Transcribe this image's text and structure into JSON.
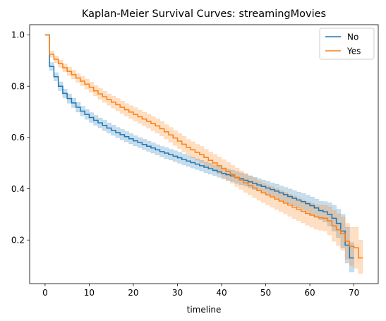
{
  "chart_data": {
    "type": "line",
    "subtype": "step-survival-with-confidence-band",
    "title": "Kaplan-Meier Survival Curves: streamingMovies",
    "xlabel": "timeline",
    "ylabel": "",
    "xlim": [
      -3.5,
      75.5
    ],
    "ylim": [
      0.03,
      1.04
    ],
    "xticks": [
      0,
      10,
      20,
      30,
      40,
      50,
      60,
      70
    ],
    "yticks": [
      0.2,
      0.4,
      0.6,
      0.8,
      1.0
    ],
    "xtick_labels": [
      "0",
      "10",
      "20",
      "30",
      "40",
      "50",
      "60",
      "70"
    ],
    "ytick_labels": [
      "0.2",
      "0.4",
      "0.6",
      "0.8",
      "1.0"
    ],
    "legend_position": "top-right",
    "series": [
      {
        "name": "No",
        "color": "#1f77b4",
        "band_color": "#1f77b4",
        "x": [
          0,
          1,
          2,
          3,
          4,
          5,
          6,
          7,
          8,
          9,
          10,
          11,
          12,
          13,
          14,
          15,
          16,
          17,
          18,
          19,
          20,
          21,
          22,
          23,
          24,
          25,
          26,
          27,
          28,
          29,
          30,
          31,
          32,
          33,
          34,
          35,
          36,
          37,
          38,
          39,
          40,
          41,
          42,
          43,
          44,
          45,
          46,
          47,
          48,
          49,
          50,
          51,
          52,
          53,
          54,
          55,
          56,
          57,
          58,
          59,
          60,
          61,
          62,
          63,
          64,
          65,
          66,
          67,
          68,
          69,
          70
        ],
        "y": [
          1.0,
          0.877,
          0.837,
          0.8,
          0.772,
          0.752,
          0.735,
          0.718,
          0.703,
          0.69,
          0.678,
          0.667,
          0.657,
          0.647,
          0.637,
          0.628,
          0.619,
          0.611,
          0.603,
          0.595,
          0.587,
          0.58,
          0.573,
          0.566,
          0.559,
          0.552,
          0.545,
          0.539,
          0.533,
          0.527,
          0.521,
          0.514,
          0.508,
          0.502,
          0.496,
          0.49,
          0.484,
          0.478,
          0.472,
          0.466,
          0.46,
          0.455,
          0.45,
          0.444,
          0.439,
          0.433,
          0.427,
          0.421,
          0.415,
          0.409,
          0.403,
          0.397,
          0.391,
          0.384,
          0.377,
          0.37,
          0.363,
          0.356,
          0.35,
          0.342,
          0.334,
          0.325,
          0.315,
          0.31,
          0.3,
          0.285,
          0.265,
          0.235,
          0.18,
          0.13,
          0.13
        ],
        "ci_lower": [
          1.0,
          0.862,
          0.821,
          0.783,
          0.755,
          0.734,
          0.717,
          0.699,
          0.684,
          0.671,
          0.659,
          0.648,
          0.638,
          0.627,
          0.617,
          0.608,
          0.599,
          0.591,
          0.583,
          0.575,
          0.567,
          0.56,
          0.553,
          0.546,
          0.539,
          0.532,
          0.525,
          0.518,
          0.512,
          0.506,
          0.5,
          0.493,
          0.487,
          0.481,
          0.475,
          0.469,
          0.463,
          0.457,
          0.451,
          0.445,
          0.438,
          0.433,
          0.428,
          0.421,
          0.416,
          0.41,
          0.403,
          0.397,
          0.391,
          0.384,
          0.377,
          0.371,
          0.364,
          0.357,
          0.349,
          0.341,
          0.333,
          0.325,
          0.318,
          0.309,
          0.3,
          0.29,
          0.279,
          0.27,
          0.255,
          0.235,
          0.21,
          0.17,
          0.11,
          0.075,
          0.075
        ],
        "ci_upper": [
          1.0,
          0.892,
          0.853,
          0.817,
          0.789,
          0.77,
          0.753,
          0.737,
          0.722,
          0.709,
          0.697,
          0.686,
          0.676,
          0.667,
          0.657,
          0.648,
          0.639,
          0.631,
          0.623,
          0.615,
          0.607,
          0.6,
          0.593,
          0.586,
          0.579,
          0.572,
          0.565,
          0.56,
          0.554,
          0.548,
          0.542,
          0.535,
          0.529,
          0.523,
          0.517,
          0.511,
          0.505,
          0.499,
          0.493,
          0.487,
          0.482,
          0.477,
          0.472,
          0.467,
          0.462,
          0.456,
          0.451,
          0.445,
          0.439,
          0.434,
          0.429,
          0.423,
          0.418,
          0.411,
          0.405,
          0.399,
          0.393,
          0.387,
          0.382,
          0.375,
          0.368,
          0.36,
          0.351,
          0.35,
          0.345,
          0.335,
          0.32,
          0.3,
          0.25,
          0.19,
          0.19
        ]
      },
      {
        "name": "Yes",
        "color": "#ff7f0e",
        "band_color": "#ff7f0e",
        "x": [
          0,
          1,
          2,
          3,
          4,
          5,
          6,
          7,
          8,
          9,
          10,
          11,
          12,
          13,
          14,
          15,
          16,
          17,
          18,
          19,
          20,
          21,
          22,
          23,
          24,
          25,
          26,
          27,
          28,
          29,
          30,
          31,
          32,
          33,
          34,
          35,
          36,
          37,
          38,
          39,
          40,
          41,
          42,
          43,
          44,
          45,
          46,
          47,
          48,
          49,
          50,
          51,
          52,
          53,
          54,
          55,
          56,
          57,
          58,
          59,
          60,
          61,
          62,
          63,
          64,
          65,
          66,
          67,
          68,
          69,
          70,
          71,
          72
        ],
        "y": [
          1.0,
          0.925,
          0.905,
          0.888,
          0.872,
          0.858,
          0.845,
          0.832,
          0.82,
          0.808,
          0.796,
          0.782,
          0.77,
          0.759,
          0.748,
          0.738,
          0.728,
          0.718,
          0.708,
          0.699,
          0.69,
          0.681,
          0.672,
          0.663,
          0.654,
          0.645,
          0.634,
          0.622,
          0.61,
          0.598,
          0.586,
          0.574,
          0.562,
          0.552,
          0.542,
          0.533,
          0.522,
          0.511,
          0.501,
          0.49,
          0.479,
          0.467,
          0.456,
          0.445,
          0.434,
          0.423,
          0.413,
          0.403,
          0.393,
          0.384,
          0.376,
          0.368,
          0.36,
          0.352,
          0.344,
          0.336,
          0.328,
          0.32,
          0.312,
          0.304,
          0.297,
          0.29,
          0.287,
          0.285,
          0.275,
          0.255,
          0.24,
          0.225,
          0.195,
          0.175,
          0.17,
          0.13,
          0.13
        ],
        "ci_lower": [
          1.0,
          0.913,
          0.892,
          0.874,
          0.857,
          0.842,
          0.828,
          0.815,
          0.802,
          0.789,
          0.776,
          0.762,
          0.749,
          0.737,
          0.726,
          0.715,
          0.704,
          0.694,
          0.684,
          0.674,
          0.664,
          0.655,
          0.646,
          0.636,
          0.627,
          0.617,
          0.606,
          0.594,
          0.581,
          0.569,
          0.557,
          0.544,
          0.532,
          0.521,
          0.511,
          0.501,
          0.49,
          0.479,
          0.468,
          0.457,
          0.445,
          0.432,
          0.421,
          0.409,
          0.398,
          0.386,
          0.376,
          0.365,
          0.355,
          0.346,
          0.337,
          0.328,
          0.319,
          0.311,
          0.302,
          0.293,
          0.284,
          0.276,
          0.267,
          0.258,
          0.25,
          0.242,
          0.238,
          0.235,
          0.22,
          0.195,
          0.178,
          0.16,
          0.125,
          0.1,
          0.09,
          0.07,
          0.07
        ],
        "ci_upper": [
          1.0,
          0.937,
          0.918,
          0.902,
          0.887,
          0.874,
          0.862,
          0.849,
          0.838,
          0.827,
          0.816,
          0.802,
          0.791,
          0.781,
          0.77,
          0.761,
          0.752,
          0.742,
          0.732,
          0.724,
          0.716,
          0.707,
          0.698,
          0.69,
          0.681,
          0.673,
          0.662,
          0.65,
          0.639,
          0.627,
          0.615,
          0.604,
          0.592,
          0.583,
          0.573,
          0.565,
          0.554,
          0.543,
          0.534,
          0.523,
          0.513,
          0.502,
          0.491,
          0.481,
          0.47,
          0.46,
          0.45,
          0.441,
          0.431,
          0.422,
          0.415,
          0.408,
          0.401,
          0.393,
          0.386,
          0.379,
          0.372,
          0.364,
          0.357,
          0.35,
          0.344,
          0.338,
          0.336,
          0.335,
          0.33,
          0.315,
          0.302,
          0.29,
          0.265,
          0.25,
          0.25,
          0.2,
          0.2
        ]
      }
    ]
  }
}
